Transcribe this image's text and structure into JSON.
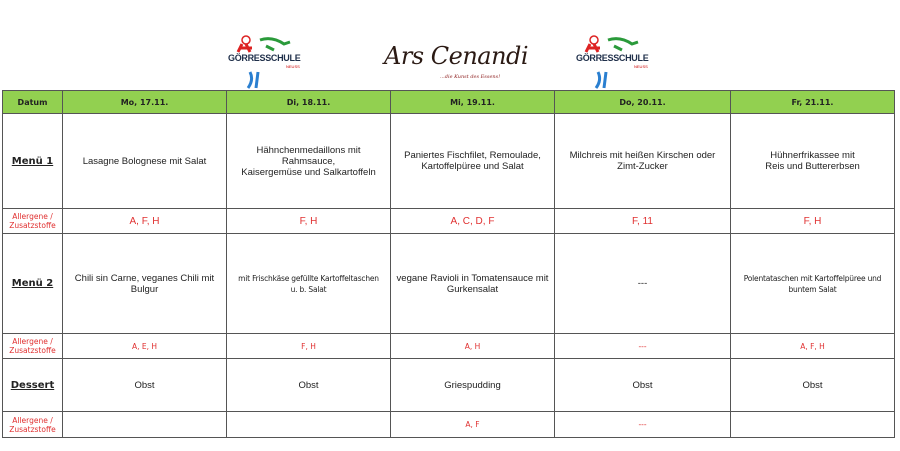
{
  "logos": {
    "school_left": "GÖRRESSCHULE",
    "school_sub": "NEUSS",
    "caterer": "Ars Cenandi",
    "caterer_tagline": "...die Kunst des Essens!",
    "school_right": "GÖRRESSCHULE"
  },
  "colors": {
    "header_bg": "#92d050",
    "allergen_text": "#e03030"
  },
  "table": {
    "header": [
      "Datum",
      "Mo, 17.11.",
      "Di, 18.11.",
      "Mi, 19.11.",
      "Do, 20.11.",
      "Fr, 21.11."
    ],
    "rows": [
      {
        "label": "Menü 1",
        "cells": [
          "Lasagne Bolognese mit Salat",
          "Hähnchenmedaillons mit\nRahmsauce,\nKaisergemüse und Salkartoffeln",
          "Paniertes Fischfilet, Remoulade,\nKartoffelpüree und Salat",
          "Milchreis mit heißen Kirschen oder\nZimt-Zucker",
          "Hühnerfrikassee mit\nReis und Buttererbsen"
        ]
      },
      {
        "label": "Allergene /\nZusatzstoffe",
        "cells": [
          "A, F, H",
          "F, H",
          "A, C, D, F",
          "F, 11",
          "F, H"
        ]
      },
      {
        "label": "Menü 2",
        "cells": [
          "Chili sin Carne, veganes Chili mit\nBulgur",
          "mit Frischkäse gefüllte Kartoffeltaschen\nu. b. Salat",
          "vegane Ravioli in Tomatensauce mit\nGurkensalat",
          "---",
          "Polentataschen mit Kartoffelpüree und\nbuntem Salat"
        ]
      },
      {
        "label": "Allergene /\nZusatzstoffe",
        "cells": [
          "A, E, H",
          "F, H",
          "A, H",
          "---",
          "A, F, H"
        ]
      },
      {
        "label": "Dessert",
        "cells": [
          "Obst",
          "Obst",
          "Griespudding",
          "Obst",
          "Obst"
        ]
      },
      {
        "label": "Allergene /\nZusatzstoffe",
        "cells": [
          "",
          "",
          "A, F",
          "---",
          ""
        ]
      }
    ]
  }
}
